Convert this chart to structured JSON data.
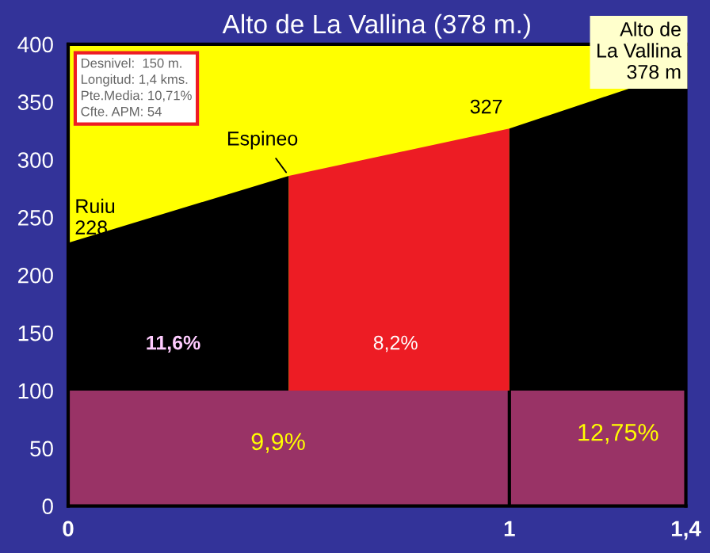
{
  "chart_data": {
    "type": "area",
    "title": "Alto de La Vallina (378 m.)",
    "series": [
      {
        "color": "#000000",
        "x": [
          0,
          0.5
        ],
        "values": [
          228,
          286
        ]
      },
      {
        "color": "#ed1c24",
        "x": [
          0.5,
          1
        ],
        "values": [
          286,
          327
        ]
      },
      {
        "color": "#000000",
        "x": [
          1,
          1.4
        ],
        "values": [
          327,
          378
        ]
      },
      {
        "color": "#993366",
        "x": [
          0,
          1,
          1.4
        ],
        "values": [
          100,
          100,
          100
        ]
      }
    ],
    "bands": [
      {
        "axis": "y",
        "from": 100,
        "to": 400,
        "color": "#ffff00"
      }
    ],
    "ref_lines": [
      {
        "axis": "x",
        "value": 1,
        "color": "#000000"
      }
    ],
    "xlim": [
      0,
      1.4
    ],
    "xticks": [
      0,
      1,
      {
        "value": 1.4,
        "label": "1,4"
      }
    ],
    "ylim": [
      0,
      400
    ],
    "yticks": [
      0,
      50,
      100,
      150,
      200,
      250,
      300,
      350,
      400
    ],
    "legend": false,
    "annotations": [
      {
        "text": "Ruiu\n228",
        "x": 0,
        "y": 228
      },
      {
        "text": "Espineo",
        "x": 0.5,
        "y": 286
      },
      {
        "text": "327",
        "x": 1,
        "y": 327
      },
      {
        "text": "Alto de\nLa Vallina\n378 m",
        "x": 1.4,
        "y": 378
      },
      "11,6%",
      "8,2%",
      "9,9%",
      "12,75%",
      "Desnivel:  150 m.\nLongitud: 1,4 kms.\nPte.Media: 10,71%\nCfte. APM: 54"
    ]
  }
}
